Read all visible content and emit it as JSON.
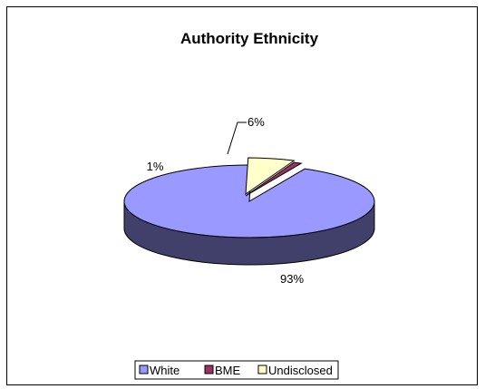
{
  "chart_data": {
    "type": "pie",
    "title": "Authority Ethnicity",
    "categories": [
      "White",
      "BME",
      "Undisclosed"
    ],
    "values": [
      93,
      1,
      6
    ],
    "data_labels": [
      "93%",
      "1%",
      "6%"
    ],
    "colors": [
      "#9999ff",
      "#993366",
      "#ffffcc"
    ],
    "legend_position": "bottom",
    "exploded": true,
    "three_d": true
  }
}
